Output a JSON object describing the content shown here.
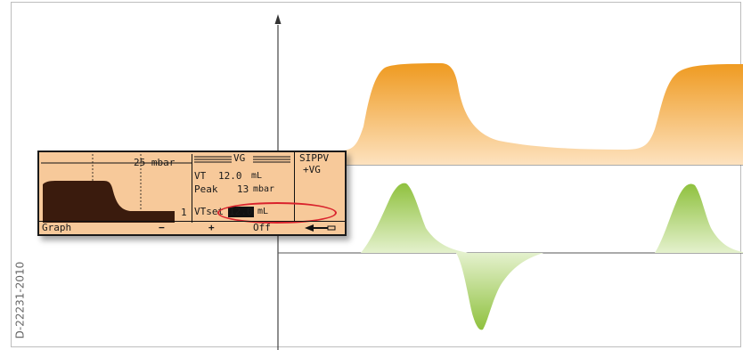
{
  "side_code": "D-22231-2010",
  "panel": {
    "graph_scale": "25 mbar",
    "graph_marker": "1",
    "mode_header": "VG",
    "mode_title_line1": "SIPPV",
    "mode_title_line2": "+VG",
    "vt_label": "VT",
    "vt_value": "12.0",
    "vt_unit": "mL",
    "peak_label": "Peak",
    "peak_value": "13",
    "peak_unit": "mbar",
    "vtset_label": "VTset",
    "vtset_value": "12.0",
    "vtset_unit": "mL"
  },
  "softkeys": {
    "graph": "Graph",
    "minus": "−",
    "plus": "+",
    "off": "Off",
    "back_icon": "arrow-left"
  },
  "colors": {
    "pressure_fill": "#f0a030",
    "flow_fill": "#9fcc50",
    "panel_bg": "#f7c99a",
    "highlight_ring": "#d9232d"
  }
}
